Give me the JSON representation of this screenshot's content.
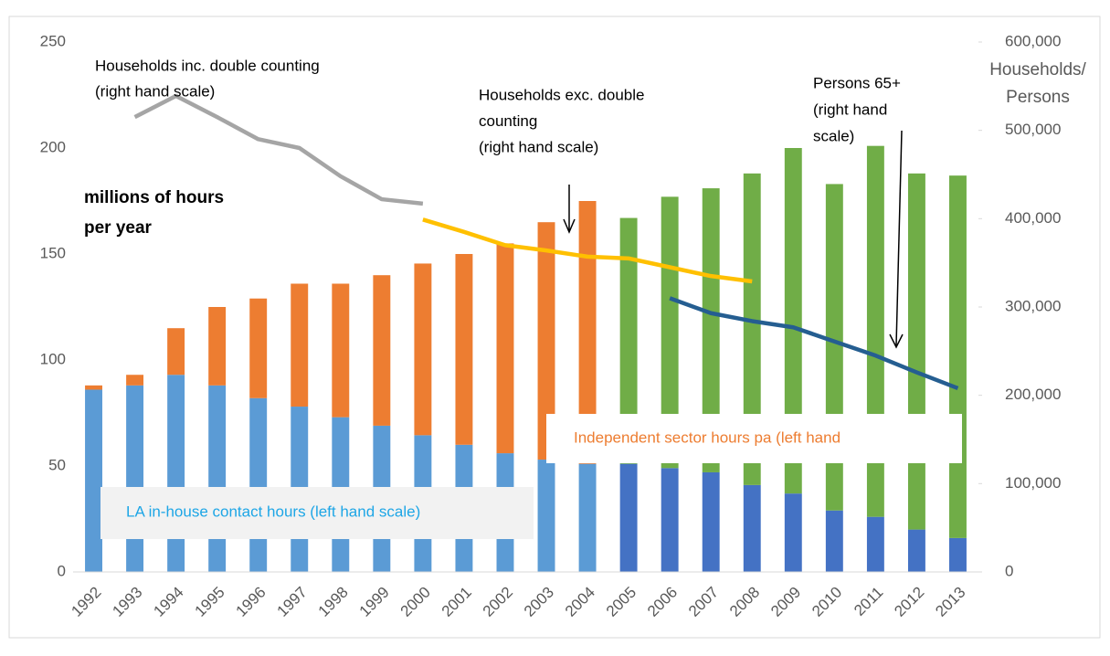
{
  "chart_data": {
    "type": "bar-line",
    "categories": [
      "1992",
      "1993",
      "1994",
      "1995",
      "1996",
      "1997",
      "1998",
      "1999",
      "2000",
      "2001",
      "2002",
      "2003",
      "2004",
      "2005",
      "2006",
      "2007",
      "2008",
      "2009",
      "2010",
      "2011",
      "2012",
      "2013"
    ],
    "series": [
      {
        "name": "LA in-house contact hours (left hand scale)",
        "kind": "bar",
        "color": "#1ea6e6",
        "colors": [
          "#5b9bd5",
          "#5b9bd5",
          "#5b9bd5",
          "#5b9bd5",
          "#5b9bd5",
          "#5b9bd5",
          "#5b9bd5",
          "#5b9bd5",
          "#5b9bd5",
          "#5b9bd5",
          "#5b9bd5",
          "#5b9bd5",
          "#5b9bd5",
          "#4472c4",
          "#4472c4",
          "#4472c4",
          "#4472c4",
          "#4472c4",
          "#4472c4",
          "#4472c4",
          "#4472c4",
          "#4472c4"
        ],
        "values": [
          86,
          88,
          93,
          88,
          82,
          78,
          73,
          69,
          64.5,
          60,
          56,
          53,
          51,
          51,
          49,
          47,
          41,
          37,
          29,
          26,
          20,
          16
        ]
      },
      {
        "name": "Independent sector hours pa (left hand",
        "kind": "bar",
        "color": "#ed7d31",
        "colors": [
          "#ed7d31",
          "#ed7d31",
          "#ed7d31",
          "#ed7d31",
          "#ed7d31",
          "#ed7d31",
          "#ed7d31",
          "#ed7d31",
          "#ed7d31",
          "#ed7d31",
          "#ed7d31",
          "#ed7d31",
          "#ed7d31",
          "#70ad47",
          "#70ad47",
          "#70ad47",
          "#70ad47",
          "#70ad47",
          "#70ad47",
          "#70ad47",
          "#70ad47",
          "#70ad47"
        ],
        "values": [
          2,
          5,
          22,
          37,
          47,
          58,
          63,
          71,
          81,
          90,
          99,
          112,
          124,
          116,
          128,
          134,
          147,
          163,
          154,
          175,
          168,
          171
        ]
      },
      {
        "kind": "line",
        "axis": "y2",
        "color": "#a5a5a5",
        "values": [
          null,
          515000,
          539000,
          515000,
          490000,
          480000,
          448000,
          422000,
          417000,
          null,
          null,
          null,
          null,
          null,
          null,
          null,
          null,
          null,
          null,
          null,
          null,
          null
        ]
      },
      {
        "kind": "line",
        "axis": "y2",
        "color": "#ffc000",
        "values": [
          null,
          null,
          null,
          null,
          null,
          null,
          null,
          null,
          399000,
          385000,
          370000,
          364000,
          357000,
          355000,
          345000,
          335000,
          329000,
          null,
          null,
          null,
          null,
          null
        ]
      },
      {
        "kind": "line",
        "axis": "y2",
        "color": "#255e91",
        "values": [
          null,
          null,
          null,
          null,
          null,
          null,
          null,
          null,
          null,
          null,
          null,
          null,
          null,
          null,
          310000,
          293000,
          284000,
          277000,
          261000,
          245000,
          226000,
          208000
        ]
      }
    ],
    "ylim": [
      0,
      250
    ],
    "yticks": [
      0,
      50,
      100,
      150,
      200,
      250
    ],
    "y2lim": [
      0,
      600000
    ],
    "y2ticks": [
      {
        "value": 0,
        "label": "0"
      },
      {
        "value": 100000,
        "label": "100,000"
      },
      {
        "value": 200000,
        "label": "200,000"
      },
      {
        "value": 300000,
        "label": "300,000"
      },
      {
        "value": 400000,
        "label": "400,000"
      },
      {
        "value": 500000,
        "label": "500,000"
      },
      {
        "value": 600000,
        "label": "600,000"
      }
    ],
    "ylabel": [
      "millions of hours",
      "per year"
    ],
    "y2label": [
      "Households/",
      "Persons"
    ],
    "annotations": [
      [
        "Households inc. double counting",
        "(right hand scale)"
      ],
      [
        "Households exc. double",
        "counting",
        "(right hand scale)"
      ],
      [
        "Persons 65+",
        "(right hand",
        "scale)"
      ]
    ],
    "grid": false
  }
}
